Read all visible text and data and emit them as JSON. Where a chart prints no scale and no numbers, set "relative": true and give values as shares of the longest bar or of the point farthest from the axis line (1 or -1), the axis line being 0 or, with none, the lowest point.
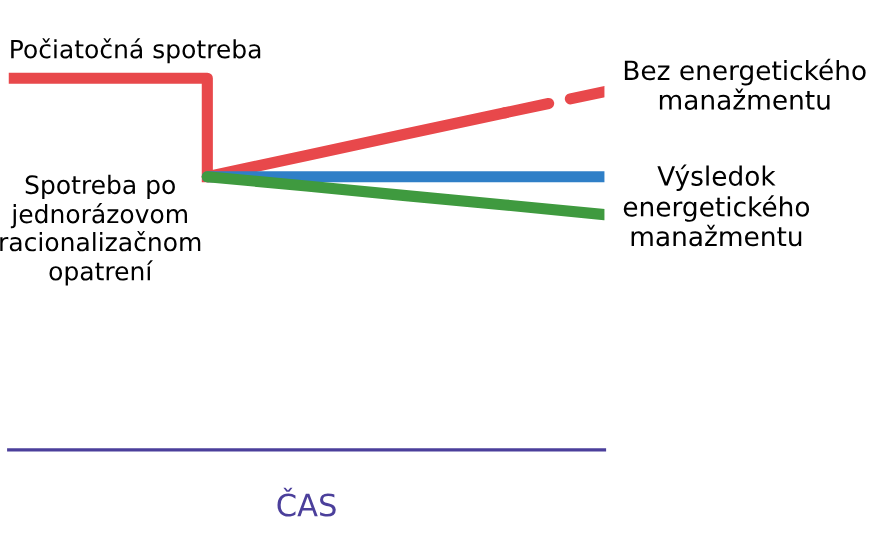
{
  "chart_data": {
    "type": "line",
    "relative": true,
    "xlabel": "ČAS",
    "categories": [
      null,
      null,
      null,
      null,
      null,
      null,
      null
    ],
    "series": [
      {
        "type": "step",
        "color": "#e8484b",
        "line_style": "solid",
        "values": [
          1,
          1,
          0.735,
          null,
          null,
          null,
          null
        ]
      },
      {
        "color": "#e8484b",
        "line_style": "solid",
        "values": [
          null,
          null,
          0.735,
          0.792,
          0.85,
          0.907,
          null
        ]
      },
      {
        "color": "#e8484b",
        "line_style": "dashed",
        "values": [
          null,
          null,
          null,
          null,
          null,
          0.907,
          0.964
        ]
      },
      {
        "color": "#2f7fc7",
        "line_style": "solid",
        "values": [
          null,
          null,
          0.735,
          0.735,
          0.735,
          0.735,
          0.735
        ]
      },
      {
        "color": "#3f9a3f",
        "line_style": "solid",
        "values": [
          null,
          null,
          0.735,
          0.71,
          0.684,
          0.659,
          0.633
        ]
      }
    ],
    "annotations": [
      "Počiatočná spotreba",
      "Spotreba po\njednorázovom\nracionalizačnom\nopatrení",
      "Bez energetického\nmanažmentu",
      "Výsledok\nenergetického\nmanažmentu"
    ],
    "grid": false,
    "legend": false,
    "marker": "none"
  }
}
